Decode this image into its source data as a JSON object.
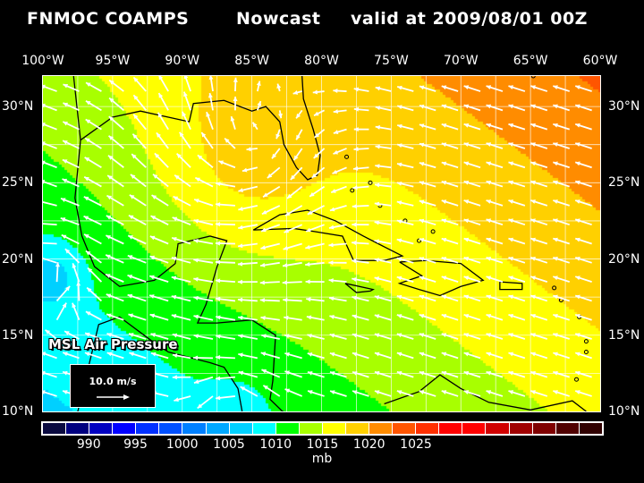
{
  "header": {
    "source": "FNMOC COAMPS",
    "product": "Nowcast",
    "valid": "valid at 2009/08/01 00Z"
  },
  "map": {
    "lon_labels": [
      "100°W",
      "95°W",
      "90°W",
      "85°W",
      "80°W",
      "75°W",
      "70°W",
      "65°W",
      "60°W"
    ],
    "lon_values": [
      -100,
      -95,
      -90,
      -85,
      -80,
      -75,
      -70,
      -65,
      -60
    ],
    "lat_labels": [
      "30°N",
      "25°N",
      "20°N",
      "15°N",
      "10°N"
    ],
    "lat_values": [
      30,
      25,
      20,
      15,
      10
    ],
    "field_label": "MSL Air Pressure",
    "wind_reference": "10.0 m/s"
  },
  "colorbar": {
    "colors": [
      "#0a0a40",
      "#000080",
      "#0000c0",
      "#0000ff",
      "#0030ff",
      "#0050ff",
      "#0080ff",
      "#00a8ff",
      "#00d0ff",
      "#00ffff",
      "#00ff00",
      "#a8ff00",
      "#ffff00",
      "#ffd000",
      "#ff8c00",
      "#ff5500",
      "#ff3000",
      "#ff0000",
      "#ff0000",
      "#d00000",
      "#a00000",
      "#800000",
      "#500000",
      "#300000"
    ],
    "labels": [
      "990",
      "995",
      "1000",
      "1005",
      "1010",
      "1015",
      "1020",
      "1025"
    ],
    "label_values": [
      990,
      995,
      1000,
      1005,
      1010,
      1015,
      1020,
      1025
    ],
    "min": 985,
    "step": 2.5,
    "unit": "mb"
  }
}
